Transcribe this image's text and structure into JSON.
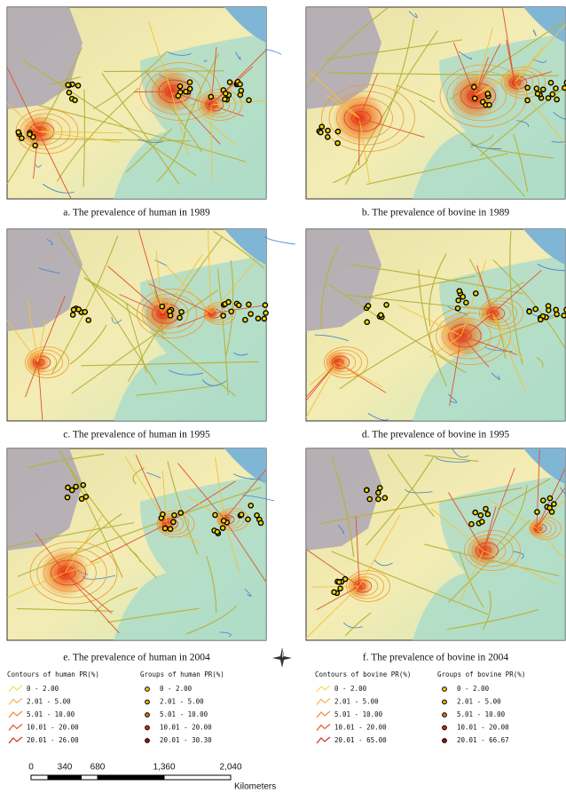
{
  "panels": [
    {
      "caption": "a. The prevalence of human in 1989"
    },
    {
      "caption": "b. The prevalence of bovine in 1989"
    },
    {
      "caption": "c. The prevalence of human in 1995"
    },
    {
      "caption": "d. The prevalence of bovine in 1995"
    },
    {
      "caption": "e. The prevalence of human in 2004"
    },
    {
      "caption": "f. The prevalence of bovine in 2004"
    }
  ],
  "legends": [
    {
      "title": "Contours of human PR(%)",
      "kind": "line",
      "items": [
        "0 - 2.00",
        "2.01 - 5.00",
        "5.01 - 10.00",
        "10.01 - 20.00",
        "20.01 - 26.00"
      ]
    },
    {
      "title": "Groups of human PR(%)",
      "kind": "dot",
      "items": [
        "0 - 2.00",
        "2.01 - 5.00",
        "5.01 - 10.00",
        "10.01 - 20.00",
        "20.01 - 30.30"
      ]
    },
    {
      "title": "Contours of bovine PR(%)",
      "kind": "line",
      "items": [
        "0 - 2.00",
        "2.01 - 5.00",
        "5.01 - 10.00",
        "10.01 - 20.00",
        "20.01 - 65.00"
      ]
    },
    {
      "title": "Groups of bovine PR(%)",
      "kind": "dot",
      "items": [
        "0 - 2.00",
        "2.01 - 5.00",
        "5.01 - 10.00",
        "10.01 - 20.00",
        "20.01 - 66.67"
      ]
    }
  ],
  "scale_bar": {
    "labels": [
      "0",
      "340",
      "680",
      "1,360",
      "2,040"
    ],
    "unit": "Kilometers"
  }
}
